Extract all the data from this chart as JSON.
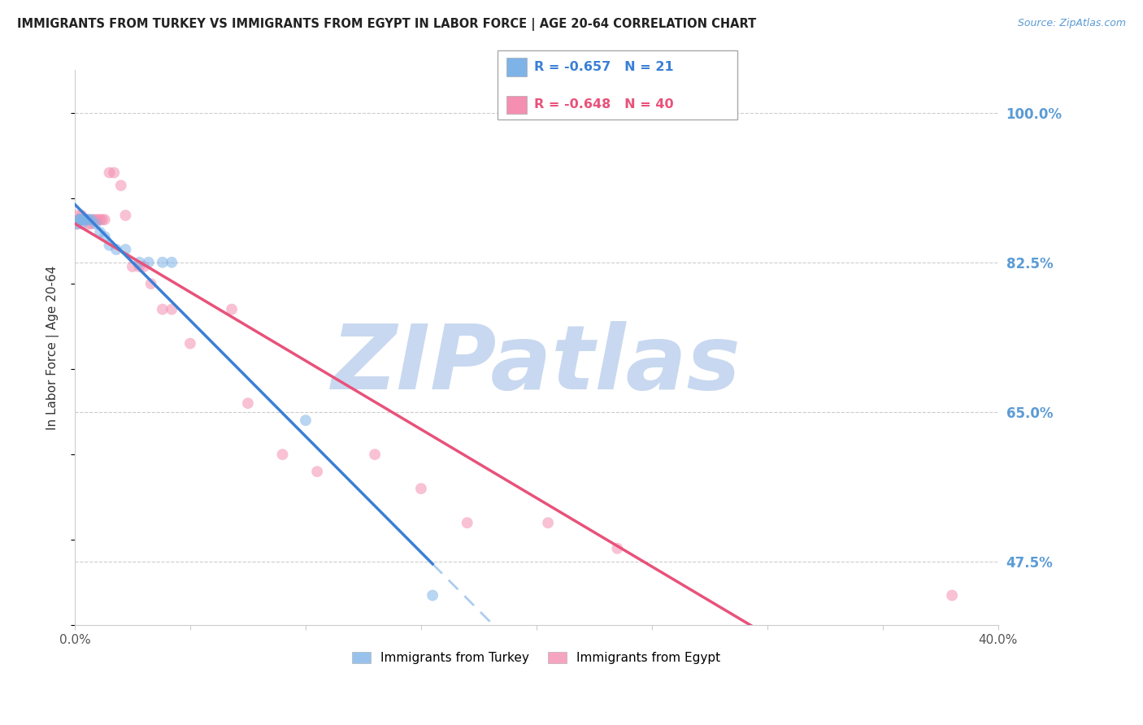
{
  "title": "IMMIGRANTS FROM TURKEY VS IMMIGRANTS FROM EGYPT IN LABOR FORCE | AGE 20-64 CORRELATION CHART",
  "source": "Source: ZipAtlas.com",
  "ylabel": "In Labor Force | Age 20-64",
  "turkey_label": "Immigrants from Turkey",
  "egypt_label": "Immigrants from Egypt",
  "turkey_R": -0.657,
  "turkey_N": 21,
  "egypt_R": -0.648,
  "egypt_N": 40,
  "turkey_color": "#7eb3e8",
  "egypt_color": "#f48fb1",
  "turkey_line_color": "#3a7fd5",
  "turkey_dash_color": "#a0c4f0",
  "egypt_line_color": "#e8527a",
  "marker_size": 100,
  "marker_alpha": 0.55,
  "xlim": [
    0.0,
    0.4
  ],
  "ylim": [
    0.4,
    1.05
  ],
  "x_ticks": [
    0.0,
    0.05,
    0.1,
    0.15,
    0.2,
    0.25,
    0.3,
    0.35,
    0.4
  ],
  "right_yticks": [
    1.0,
    0.825,
    0.65,
    0.475
  ],
  "right_ytick_labels": [
    "100.0%",
    "82.5%",
    "65.0%",
    "47.5%"
  ],
  "background_color": "#ffffff",
  "grid_color": "#cccccc",
  "watermark_text": "ZIPatlas",
  "watermark_color": "#c8d8f0",
  "watermark_fontsize": 80,
  "turkey_x": [
    0.001,
    0.002,
    0.002,
    0.003,
    0.003,
    0.004,
    0.005,
    0.006,
    0.007,
    0.009,
    0.011,
    0.013,
    0.015,
    0.018,
    0.022,
    0.028,
    0.032,
    0.038,
    0.042,
    0.1,
    0.155
  ],
  "turkey_y": [
    0.87,
    0.875,
    0.875,
    0.875,
    0.87,
    0.875,
    0.875,
    0.875,
    0.875,
    0.87,
    0.86,
    0.855,
    0.845,
    0.84,
    0.84,
    0.825,
    0.825,
    0.825,
    0.825,
    0.64,
    0.435
  ],
  "egypt_x": [
    0.001,
    0.001,
    0.002,
    0.002,
    0.003,
    0.003,
    0.004,
    0.004,
    0.005,
    0.005,
    0.006,
    0.006,
    0.007,
    0.008,
    0.009,
    0.01,
    0.011,
    0.012,
    0.013,
    0.015,
    0.017,
    0.02,
    0.022,
    0.025,
    0.028,
    0.03,
    0.033,
    0.038,
    0.042,
    0.05,
    0.068,
    0.075,
    0.09,
    0.105,
    0.13,
    0.15,
    0.17,
    0.205,
    0.235,
    0.38
  ],
  "egypt_y": [
    0.88,
    0.87,
    0.875,
    0.875,
    0.875,
    0.88,
    0.875,
    0.875,
    0.875,
    0.875,
    0.875,
    0.87,
    0.87,
    0.875,
    0.875,
    0.875,
    0.875,
    0.875,
    0.875,
    0.93,
    0.93,
    0.915,
    0.88,
    0.82,
    0.82,
    0.82,
    0.8,
    0.77,
    0.77,
    0.73,
    0.77,
    0.66,
    0.6,
    0.58,
    0.6,
    0.56,
    0.52,
    0.52,
    0.49,
    0.435
  ],
  "turkey_line_start_x": 0.0,
  "turkey_line_end_solid_x": 0.155,
  "turkey_line_end_dash_x": 0.4,
  "egypt_line_start_x": 0.0,
  "egypt_line_end_x": 0.4
}
